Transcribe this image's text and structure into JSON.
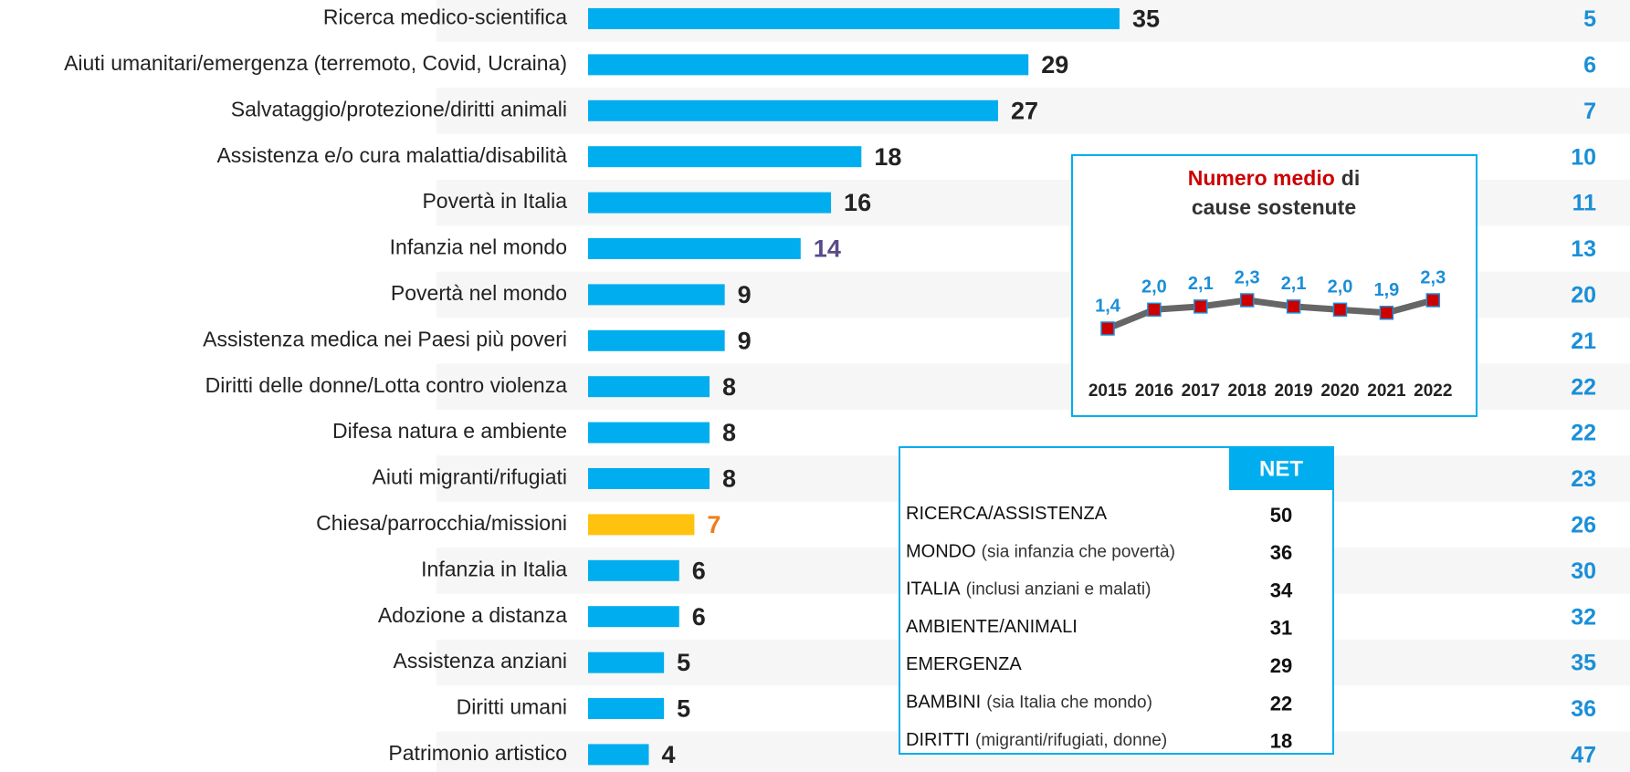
{
  "chart_data": [
    {
      "type": "bar",
      "categories": [
        "Ricerca medico-scientifica",
        "Aiuti umanitari/emergenza (terremoto, Covid, Ucraina)",
        "Salvataggio/protezione/diritti animali",
        "Assistenza e/o cura malattia/disabilità",
        "Povertà in Italia",
        "Infanzia nel mondo",
        "Povertà nel mondo",
        "Assistenza medica nei Paesi più poveri",
        "Diritti delle donne/Lotta contro violenza",
        "Difesa natura e ambiente",
        "Aiuti migranti/rifugiati",
        "Chiesa/parrocchia/missioni",
        "Infanzia in Italia",
        "Adozione a distanza",
        "Assistenza anziani",
        "Diritti umani",
        "Patrimonio artistico"
      ],
      "values": [
        35,
        29,
        27,
        18,
        16,
        14,
        9,
        9,
        8,
        8,
        8,
        7,
        6,
        6,
        5,
        5,
        4
      ],
      "colors": [
        "#00aeef",
        "#00aeef",
        "#00aeef",
        "#00aeef",
        "#00aeef",
        "#00aeef",
        "#00aeef",
        "#00aeef",
        "#00aeef",
        "#00aeef",
        "#00aeef",
        "#ffc20e",
        "#00aeef",
        "#00aeef",
        "#00aeef",
        "#00aeef",
        "#00aeef"
      ],
      "value_label_colors": [
        "#222222",
        "#222222",
        "#222222",
        "#222222",
        "#222222",
        "#5b4a8a",
        "#222222",
        "#222222",
        "#222222",
        "#222222",
        "#222222",
        "#f07c1a",
        "#222222",
        "#222222",
        "#222222",
        "#222222",
        "#222222"
      ],
      "secondary_values": [
        5,
        6,
        7,
        10,
        11,
        13,
        20,
        21,
        22,
        22,
        23,
        26,
        30,
        32,
        35,
        36,
        47
      ]
    },
    {
      "type": "line",
      "title_highlight": "Numero medio",
      "title_rest": "di",
      "title_line2": "cause sostenute",
      "categories": [
        "2015",
        "2016",
        "2017",
        "2018",
        "2019",
        "2020",
        "2021",
        "2022"
      ],
      "series": [
        {
          "color": "#666666",
          "marker_color": "#cc0000",
          "values": [
            1.4,
            2.0,
            2.1,
            2.3,
            2.1,
            2.0,
            1.9,
            2.3
          ],
          "value_labels": [
            "1,4",
            "2,0",
            "2,1",
            "2,3",
            "2,1",
            "2,0",
            "1,9",
            "2,3"
          ]
        }
      ]
    }
  ],
  "table": {
    "header": "NET",
    "rows": [
      {
        "label": "RICERCA/ASSISTENZA",
        "value": 50
      },
      {
        "label": "MONDO",
        "note": "(sia infanzia che povertà)",
        "value": 36
      },
      {
        "label": "ITALIA",
        "note": "(inclusi anziani e malati)",
        "value": 34
      },
      {
        "label": "AMBIENTE/ANIMALI",
        "value": 31
      },
      {
        "label": "EMERGENZA",
        "value": 29
      },
      {
        "label": "BAMBINI",
        "note": "(sia Italia che mondo)",
        "value": 22
      },
      {
        "label": "DIRITTI",
        "note": "(migranti/rifugiati, donne)",
        "value": 18
      }
    ]
  }
}
